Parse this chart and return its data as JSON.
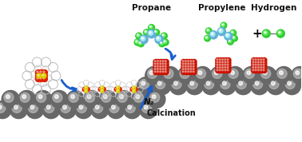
{
  "bg_color": "#ffffff",
  "title_propane": "Propane",
  "title_propylene": "Propylene",
  "title_hydrogen": "Hydrogen",
  "label_n2": "N₂",
  "label_calcination": "Calcination",
  "label_plus": "+",
  "sphere_dark": "#686868",
  "sphere_mid": "#909090",
  "red_color": "#cc1100",
  "carbon_color": "#62b0d4",
  "green_color": "#33cc33",
  "arrow_color": "#1a5fcc",
  "text_color": "#111111",
  "complex_red": "#dd2200",
  "complex_orange": "#dd8800",
  "complex_yellow": "#ddcc00"
}
